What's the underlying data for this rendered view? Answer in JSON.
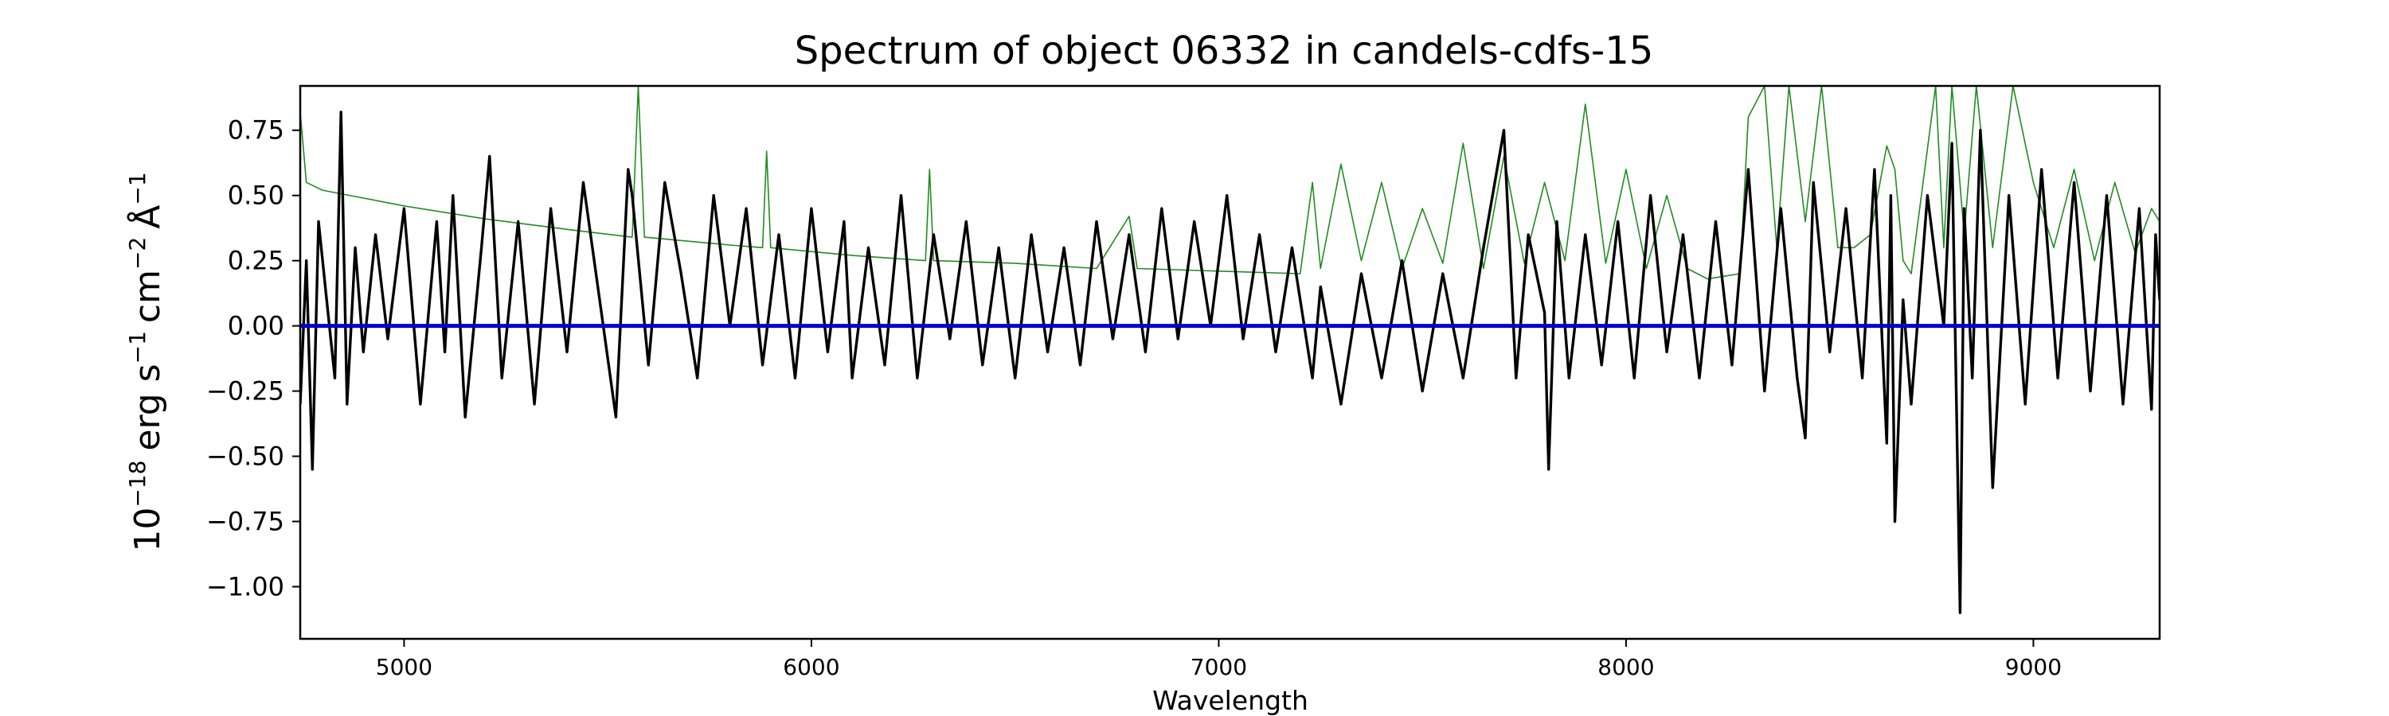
{
  "chart_data": {
    "type": "line",
    "title": "Spectrum of object 06332 in candels-cdfs-15",
    "xlabel": "Wavelength",
    "ylabel": {
      "base": "10",
      "exp": "−18",
      "unit_erg": "erg s",
      "exp_s": "−1",
      "unit_cm": "cm",
      "exp_cm": "−2",
      "unit_ang": "Å",
      "exp_ang": "−1"
    },
    "xlim": [
      4745,
      9310
    ],
    "ylim": [
      -1.2,
      0.92
    ],
    "x_ticks": [
      "5000",
      "6000",
      "7000",
      "8000",
      "9000"
    ],
    "x_tick_values": [
      5000,
      6000,
      7000,
      8000,
      9000
    ],
    "y_ticks": [
      "0.75",
      "0.50",
      "0.25",
      "0.00",
      "−0.25",
      "−0.50",
      "−0.75",
      "−1.00"
    ],
    "y_tick_values": [
      0.75,
      0.5,
      0.25,
      0.0,
      -0.25,
      -0.5,
      -0.75,
      -1.0
    ],
    "grid": false,
    "series": [
      {
        "color": "#228b22",
        "x": [
          4745,
          4760,
          4800,
          5000,
          5200,
          5400,
          5560,
          5575,
          5590,
          5800,
          5880,
          5890,
          5900,
          6100,
          6280,
          6290,
          6300,
          6500,
          6700,
          6780,
          6800,
          7000,
          7200,
          7230,
          7250,
          7300,
          7350,
          7400,
          7450,
          7500,
          7550,
          7600,
          7650,
          7700,
          7750,
          7800,
          7850,
          7900,
          7950,
          8000,
          8050,
          8100,
          8150,
          8200,
          8280,
          8300,
          8340,
          8370,
          8400,
          8440,
          8480,
          8520,
          8560,
          8600,
          8640,
          8660,
          8680,
          8700,
          8760,
          8780,
          8800,
          8830,
          8860,
          8900,
          8950,
          9000,
          9050,
          9100,
          9150,
          9200,
          9250,
          9290,
          9310
        ],
        "y": [
          0.82,
          0.55,
          0.52,
          0.46,
          0.41,
          0.37,
          0.34,
          0.92,
          0.34,
          0.31,
          0.3,
          0.67,
          0.3,
          0.27,
          0.25,
          0.6,
          0.25,
          0.24,
          0.22,
          0.42,
          0.22,
          0.21,
          0.2,
          0.55,
          0.22,
          0.62,
          0.25,
          0.55,
          0.22,
          0.45,
          0.24,
          0.7,
          0.22,
          0.65,
          0.24,
          0.55,
          0.25,
          0.85,
          0.24,
          0.6,
          0.22,
          0.5,
          0.22,
          0.18,
          0.2,
          0.8,
          0.92,
          0.3,
          0.92,
          0.4,
          0.92,
          0.3,
          0.3,
          0.35,
          0.69,
          0.6,
          0.25,
          0.2,
          0.92,
          0.3,
          0.92,
          0.35,
          0.92,
          0.3,
          0.92,
          0.55,
          0.3,
          0.6,
          0.25,
          0.55,
          0.28,
          0.45,
          0.4
        ]
      },
      {
        "color": "#000000",
        "x": [
          4745,
          4760,
          4775,
          4790,
          4810,
          4830,
          4845,
          4860,
          4880,
          4900,
          4930,
          4960,
          5000,
          5040,
          5080,
          5100,
          5120,
          5150,
          5190,
          5210,
          5240,
          5280,
          5320,
          5360,
          5400,
          5440,
          5480,
          5520,
          5550,
          5560,
          5600,
          5640,
          5680,
          5720,
          5760,
          5800,
          5840,
          5880,
          5920,
          5960,
          6000,
          6040,
          6080,
          6100,
          6140,
          6180,
          6220,
          6260,
          6300,
          6340,
          6380,
          6420,
          6460,
          6500,
          6540,
          6580,
          6620,
          6660,
          6700,
          6740,
          6780,
          6820,
          6860,
          6900,
          6940,
          6980,
          7020,
          7060,
          7100,
          7140,
          7180,
          7230,
          7250,
          7300,
          7350,
          7400,
          7450,
          7500,
          7550,
          7600,
          7650,
          7700,
          7730,
          7760,
          7800,
          7810,
          7830,
          7860,
          7900,
          7940,
          7980,
          8020,
          8060,
          8100,
          8140,
          8180,
          8220,
          8260,
          8300,
          8340,
          8380,
          8420,
          8440,
          8460,
          8500,
          8540,
          8580,
          8610,
          8640,
          8650,
          8660,
          8680,
          8700,
          8740,
          8780,
          8800,
          8820,
          8830,
          8850,
          8870,
          8900,
          8940,
          8980,
          9020,
          9060,
          9100,
          9140,
          9180,
          9220,
          9260,
          9290,
          9300,
          9310
        ],
        "y": [
          -0.3,
          0.25,
          -0.55,
          0.4,
          0.1,
          -0.2,
          0.82,
          -0.3,
          0.3,
          -0.1,
          0.35,
          -0.05,
          0.45,
          -0.3,
          0.4,
          -0.1,
          0.5,
          -0.35,
          0.3,
          0.65,
          -0.2,
          0.4,
          -0.3,
          0.45,
          -0.1,
          0.55,
          0.1,
          -0.35,
          0.6,
          0.5,
          -0.15,
          0.55,
          0.2,
          -0.2,
          0.5,
          0.0,
          0.45,
          -0.15,
          0.35,
          -0.2,
          0.45,
          -0.1,
          0.4,
          -0.2,
          0.3,
          -0.15,
          0.5,
          -0.2,
          0.35,
          -0.05,
          0.4,
          -0.15,
          0.3,
          -0.2,
          0.35,
          -0.1,
          0.3,
          -0.15,
          0.4,
          -0.05,
          0.35,
          -0.1,
          0.45,
          -0.05,
          0.4,
          0.0,
          0.5,
          -0.05,
          0.35,
          -0.1,
          0.3,
          -0.2,
          0.15,
          -0.3,
          0.2,
          -0.2,
          0.25,
          -0.25,
          0.2,
          -0.2,
          0.3,
          0.75,
          -0.2,
          0.35,
          0.05,
          -0.55,
          0.4,
          -0.2,
          0.35,
          -0.15,
          0.4,
          -0.2,
          0.5,
          -0.1,
          0.35,
          -0.2,
          0.4,
          -0.15,
          0.6,
          -0.25,
          0.45,
          -0.2,
          -0.43,
          0.55,
          -0.1,
          0.45,
          -0.2,
          0.6,
          -0.45,
          0.5,
          -0.75,
          0.1,
          -0.3,
          0.5,
          0.0,
          0.7,
          -1.1,
          0.45,
          -0.2,
          0.75,
          -0.62,
          0.5,
          -0.3,
          0.6,
          -0.2,
          0.55,
          -0.25,
          0.5,
          -0.3,
          0.45,
          -0.32,
          0.35,
          0.1
        ]
      },
      {
        "color": "#0000cd",
        "x": [
          4745,
          9310
        ],
        "y": [
          0.0,
          0.0
        ]
      }
    ]
  }
}
